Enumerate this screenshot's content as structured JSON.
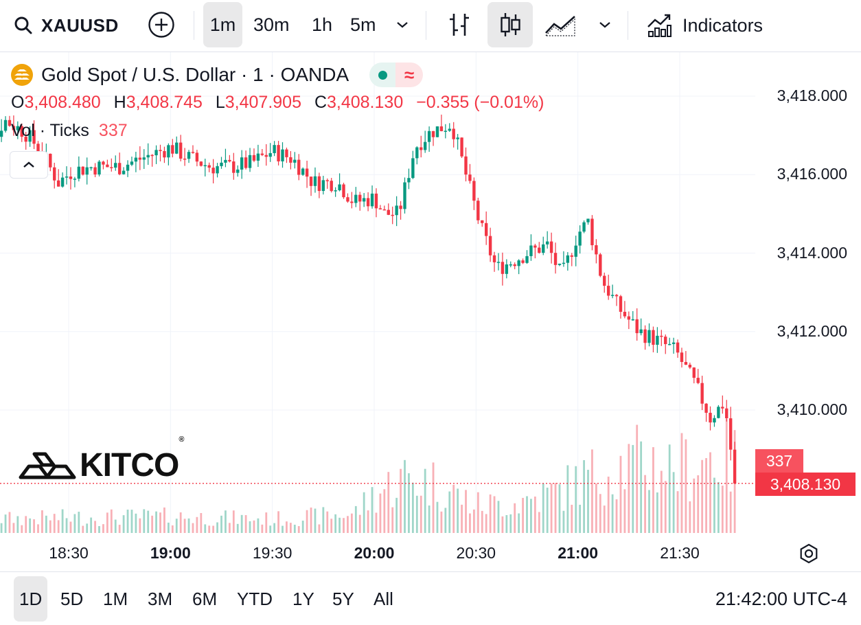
{
  "toolbar": {
    "symbol": "XAUUSD",
    "intervals": [
      "1m",
      "30m",
      "1h",
      "5m"
    ],
    "active_interval": "1m",
    "indicators_label": "Indicators"
  },
  "legend": {
    "title": "Gold Spot / U.S. Dollar · 1 · OANDA",
    "status_icon": "≈",
    "o_key": "O",
    "o_val": "3,408.480",
    "h_key": "H",
    "h_val": "3,408.745",
    "l_key": "L",
    "l_val": "3,407.905",
    "c_key": "C",
    "c_val": "3,408.130",
    "change": "−0.355 (−0.01%)",
    "vol_label": "Vol · Ticks",
    "vol_val": "337"
  },
  "logo": {
    "text": "KITCO",
    "reg": "®"
  },
  "tags": {
    "volume": "337",
    "price": "3,408.130"
  },
  "ranges": [
    "1D",
    "5D",
    "1M",
    "3M",
    "6M",
    "YTD",
    "1Y",
    "5Y",
    "All"
  ],
  "active_range": "1D",
  "clock": "21:42:00 UTC-4",
  "colors": {
    "up": "#089981",
    "down": "#f23645",
    "up_vol": "#9fd6c9",
    "down_vol": "#f8b0b6",
    "grid": "#f0f3fa"
  },
  "chart_data": {
    "type": "candlestick",
    "y_ticks": [
      "3,418.000",
      "3,416.000",
      "3,414.000",
      "3,412.000",
      "3,410.000"
    ],
    "y_tick_values": [
      3418,
      3416,
      3414,
      3412,
      3410
    ],
    "x_ticks": [
      "18:30",
      "19:00",
      "19:30",
      "20:00",
      "20:30",
      "21:00",
      "21:30"
    ],
    "x_ticks_bold": [
      false,
      true,
      false,
      true,
      false,
      true,
      false
    ],
    "ylim": [
      3407.5,
      3418.5
    ],
    "last_price": 3408.13,
    "last_volume": 337,
    "close_path": [
      [
        18.12,
        3416.6
      ],
      [
        18.18,
        3417.4
      ],
      [
        18.28,
        3417.1
      ],
      [
        18.35,
        3416.7
      ],
      [
        18.45,
        3415.8
      ],
      [
        18.52,
        3416.1
      ],
      [
        18.62,
        3416.2
      ],
      [
        18.75,
        3416.2
      ],
      [
        18.85,
        3416.4
      ],
      [
        18.95,
        3416.6
      ],
      [
        19.0,
        3416.7
      ],
      [
        19.1,
        3416.4
      ],
      [
        19.2,
        3416.2
      ],
      [
        19.3,
        3416.2
      ],
      [
        19.4,
        3416.3
      ],
      [
        19.5,
        3416.6
      ],
      [
        19.6,
        3416.4
      ],
      [
        19.7,
        3415.8
      ],
      [
        19.82,
        3415.8
      ],
      [
        19.9,
        3415.3
      ],
      [
        20.0,
        3415.4
      ],
      [
        20.05,
        3415.0
      ],
      [
        20.12,
        3415.0
      ],
      [
        20.2,
        3416.7
      ],
      [
        20.28,
        3417.1
      ],
      [
        20.38,
        3417.3
      ],
      [
        20.45,
        3416.0
      ],
      [
        20.52,
        3414.7
      ],
      [
        20.6,
        3413.6
      ],
      [
        20.68,
        3413.8
      ],
      [
        20.75,
        3414.0
      ],
      [
        20.85,
        3414.2
      ],
      [
        20.92,
        3413.4
      ],
      [
        21.0,
        3414.5
      ],
      [
        21.05,
        3414.8
      ],
      [
        21.12,
        3413.3
      ],
      [
        21.2,
        3412.6
      ],
      [
        21.3,
        3412.0
      ],
      [
        21.38,
        3411.8
      ],
      [
        21.48,
        3411.5
      ],
      [
        21.58,
        3410.6
      ],
      [
        21.65,
        3409.8
      ],
      [
        21.72,
        3410.2
      ],
      [
        21.76,
        3408.6
      ],
      [
        21.78,
        3408.13
      ]
    ],
    "volume_profile": [
      [
        18.1,
        25
      ],
      [
        18.5,
        28
      ],
      [
        19.0,
        30
      ],
      [
        19.5,
        25
      ],
      [
        19.9,
        35
      ],
      [
        20.0,
        70
      ],
      [
        20.15,
        100
      ],
      [
        20.3,
        90
      ],
      [
        20.5,
        50
      ],
      [
        20.7,
        55
      ],
      [
        20.9,
        75
      ],
      [
        21.1,
        110
      ],
      [
        21.3,
        130
      ],
      [
        21.5,
        120
      ],
      [
        21.65,
        140
      ],
      [
        21.78,
        130
      ]
    ]
  }
}
